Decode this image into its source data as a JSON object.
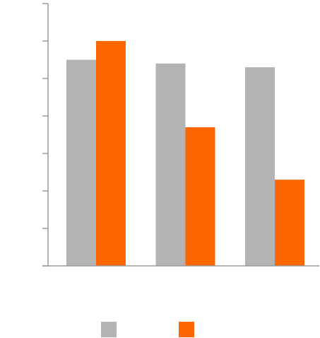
{
  "chart_data": {
    "type": "bar",
    "title": "",
    "xlabel": "",
    "ylabel": "",
    "categories": [
      "",
      "",
      ""
    ],
    "series": [
      {
        "values": [
          5.5,
          5.4,
          5.3
        ],
        "color": "#b3b3b3"
      },
      {
        "values": [
          6.0,
          3.7,
          2.3
        ],
        "color": "#ff6600"
      }
    ],
    "ylim": [
      0,
      7
    ],
    "y_ticks": [
      0,
      1,
      2,
      3,
      4,
      5,
      6,
      7
    ],
    "grid": false,
    "legend": "bottom"
  }
}
